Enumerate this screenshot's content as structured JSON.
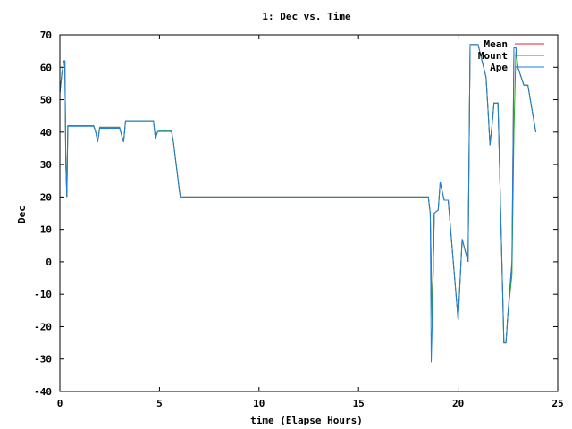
{
  "chart_data": {
    "type": "line",
    "title": "1: Dec vs. Time",
    "xlabel": "time (Elapse Hours)",
    "ylabel": "Dec",
    "xlim": [
      0,
      25
    ],
    "ylim": [
      -40,
      70
    ],
    "xticks": [
      0,
      5,
      10,
      15,
      20,
      25
    ],
    "yticks": [
      -40,
      -30,
      -20,
      -10,
      0,
      10,
      20,
      30,
      40,
      50,
      60,
      70
    ],
    "grid": false,
    "legend_position": "top-right",
    "series": [
      {
        "name": "Mean",
        "color": "#e8212b",
        "x": [
          0,
          0.1,
          0.2,
          0.25,
          0.3,
          0.35,
          0.4,
          0.45,
          1.7,
          1.8,
          1.9,
          2.0,
          3.0,
          3.1,
          3.2,
          3.3,
          4.7,
          4.8,
          4.9,
          5.0,
          5.6,
          5.7,
          5.8,
          5.9,
          6.0,
          6.05,
          18.5,
          18.6,
          18.7,
          18.8,
          19.0,
          19.1,
          19.3,
          19.5,
          20.0,
          20.2,
          20.5,
          20.6,
          21.0,
          21.4,
          21.5,
          21.6,
          21.7,
          21.8,
          22.0,
          22.3,
          22.4,
          22.5,
          22.7,
          22.8,
          22.9,
          23.0,
          23.3,
          23.5,
          23.9
        ],
        "y": [
          52,
          58,
          62,
          62,
          30,
          20,
          42,
          42,
          42,
          40,
          37,
          41.5,
          41.5,
          39,
          37,
          43.5,
          43.5,
          38,
          40,
          40.5,
          40.5,
          37,
          32,
          27,
          22,
          20,
          20,
          15,
          -19,
          15,
          16,
          24.5,
          19,
          19,
          -18,
          7,
          0,
          67,
          67,
          57,
          47,
          36,
          42,
          49,
          49,
          -25,
          -25,
          -16,
          0,
          66,
          66,
          60,
          54.5,
          54.5,
          40
        ]
      },
      {
        "name": "Mount",
        "color": "#1ea81e",
        "x": [
          0,
          0.1,
          0.2,
          0.25,
          0.3,
          0.35,
          0.4,
          0.45,
          1.7,
          1.8,
          1.9,
          2.0,
          3.0,
          3.1,
          3.2,
          3.3,
          4.7,
          4.8,
          4.9,
          5.0,
          5.6,
          5.7,
          5.8,
          5.9,
          6.0,
          6.05,
          18.5,
          18.6,
          18.7,
          18.8,
          19.0,
          19.1,
          19.3,
          19.5,
          20.0,
          20.2,
          20.5,
          20.6,
          21.0,
          21.4,
          21.5,
          21.6,
          21.7,
          21.8,
          22.0,
          22.3,
          22.4,
          22.5,
          22.7,
          22.8,
          22.9,
          23.0,
          23.3,
          23.5,
          23.9
        ],
        "y": [
          52,
          58,
          62,
          62,
          30,
          20,
          42,
          42,
          42,
          40,
          37,
          41.5,
          41.5,
          39,
          37,
          43.5,
          43.5,
          38,
          40,
          40.5,
          40.5,
          37,
          32,
          27,
          22,
          20,
          20,
          15,
          -19,
          15,
          16,
          24.5,
          19,
          19,
          -18,
          7,
          0,
          67,
          67,
          57,
          47,
          36,
          42,
          49,
          49,
          -25,
          -25,
          -16,
          -4,
          40,
          65,
          60,
          54.5,
          54.5,
          40
        ]
      },
      {
        "name": "Ape",
        "color": "#1e7ed8",
        "x": [
          0,
          0.1,
          0.2,
          0.25,
          0.3,
          0.35,
          0.4,
          0.45,
          1.7,
          1.8,
          1.9,
          2.0,
          3.0,
          3.1,
          3.2,
          3.3,
          4.7,
          4.8,
          4.9,
          5.0,
          5.6,
          5.7,
          5.8,
          5.9,
          6.0,
          6.05,
          18.5,
          18.6,
          18.65,
          18.7,
          18.8,
          19.0,
          19.1,
          19.3,
          19.5,
          20.0,
          20.2,
          20.5,
          20.6,
          21.0,
          21.4,
          21.5,
          21.6,
          21.7,
          21.8,
          22.0,
          22.3,
          22.4,
          22.5,
          22.7,
          22.8,
          22.9,
          23.0,
          23.3,
          23.5,
          23.9
        ],
        "y": [
          52,
          58,
          62,
          62,
          30,
          20,
          41.8,
          41.8,
          41.8,
          40,
          37,
          41.2,
          41.2,
          39,
          37,
          43.5,
          43.5,
          38,
          40.2,
          40.2,
          40.2,
          37,
          32,
          27,
          22,
          20,
          20,
          15,
          -31,
          -19,
          15,
          16,
          24.5,
          19,
          19,
          -18,
          7,
          0,
          67,
          67,
          57,
          47,
          36,
          42,
          49,
          49,
          -25,
          -25,
          -16,
          0,
          66,
          66,
          60,
          54.5,
          54.5,
          40
        ]
      }
    ]
  }
}
